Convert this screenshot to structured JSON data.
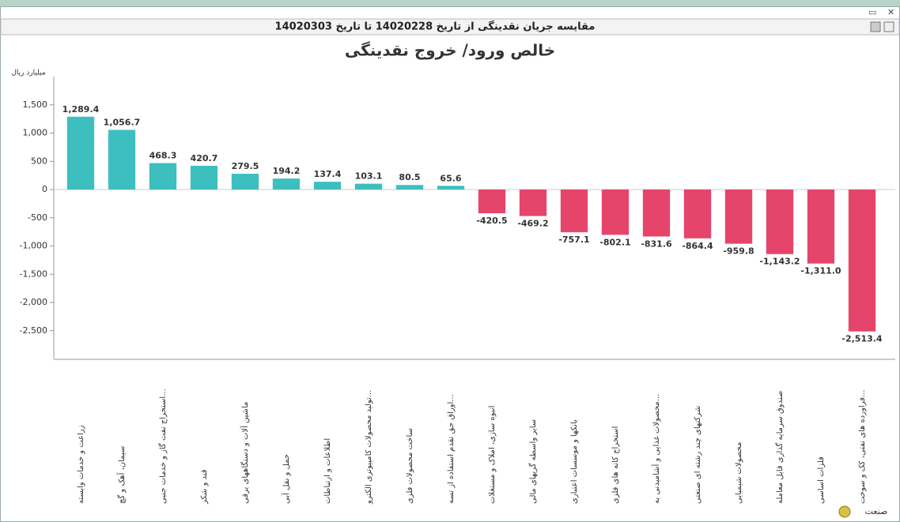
{
  "header": {
    "title": "مقایسه جریان نقدینگی از تاریخ 14020228 تا تاریخ 14020303"
  },
  "chart_data": {
    "type": "bar",
    "title": "خالص ورود/ خروج نقدینگی",
    "y_label": "میلیارد ریال",
    "x_label": "صنعت",
    "categories": [
      "زراعت و خدمات وابسته",
      "سیمان، آهک و گچ",
      "استخراج نفت گاز و خدمات جنبی...",
      "قند و شکر",
      "ماشین آلات و دستگاههای برقی",
      "حمل و نقل آبی",
      "اطلاعات و ارتباطات",
      "تولید محصولات کامپیوتری الکترو...",
      "ساخت محصولات فلزی",
      "اوراق حق تقدم استفاده از تسه...",
      "انبوه سازی، املاک و مستغلات",
      "سایر واسطه گریهای مالی",
      "بانکها و موسسات اعتباری",
      "استخراج کانه های فلزی",
      "محصولات غذایی و آشامیدنی به...",
      "شرکتهای چند رشته ای صنعتی",
      "محصولات شیمیایی",
      "صندوق سرمایه گذاری قابل معامله",
      "فلزات اساسی",
      "فراورده های نفتی، کک و سوخت..."
    ],
    "values": [
      1289.4,
      1056.7,
      468.3,
      420.7,
      279.5,
      194.2,
      137.4,
      103.1,
      80.5,
      65.6,
      -420.5,
      -469.2,
      -757.1,
      -802.1,
      -831.6,
      -864.4,
      -959.8,
      -1143.2,
      -1311.0,
      -2513.4
    ],
    "value_labels": [
      "1,289.4",
      "1,056.7",
      "468.3",
      "420.7",
      "279.5",
      "194.2",
      "137.4",
      "103.1",
      "80.5",
      "65.6",
      "-420.5",
      "-469.2",
      "-757.1",
      "-802.1",
      "-831.6",
      "-864.4",
      "-959.8",
      "-1,143.2",
      "-1,311.0",
      "-2,513.4"
    ],
    "positive_color": "#3dbfbf",
    "negative_color": "#e6456b",
    "ylim": [
      -3000,
      2000
    ],
    "yticks": [
      {
        "value": 1500,
        "label": "1,500"
      },
      {
        "value": 1000,
        "label": "1,000"
      },
      500,
      0,
      -500,
      {
        "value": -1000,
        "label": "-1,000"
      },
      {
        "value": -1500,
        "label": "-1,500"
      },
      {
        "value": -2000,
        "label": "-2,000"
      },
      {
        "value": -2500,
        "label": "-2,500"
      }
    ]
  }
}
